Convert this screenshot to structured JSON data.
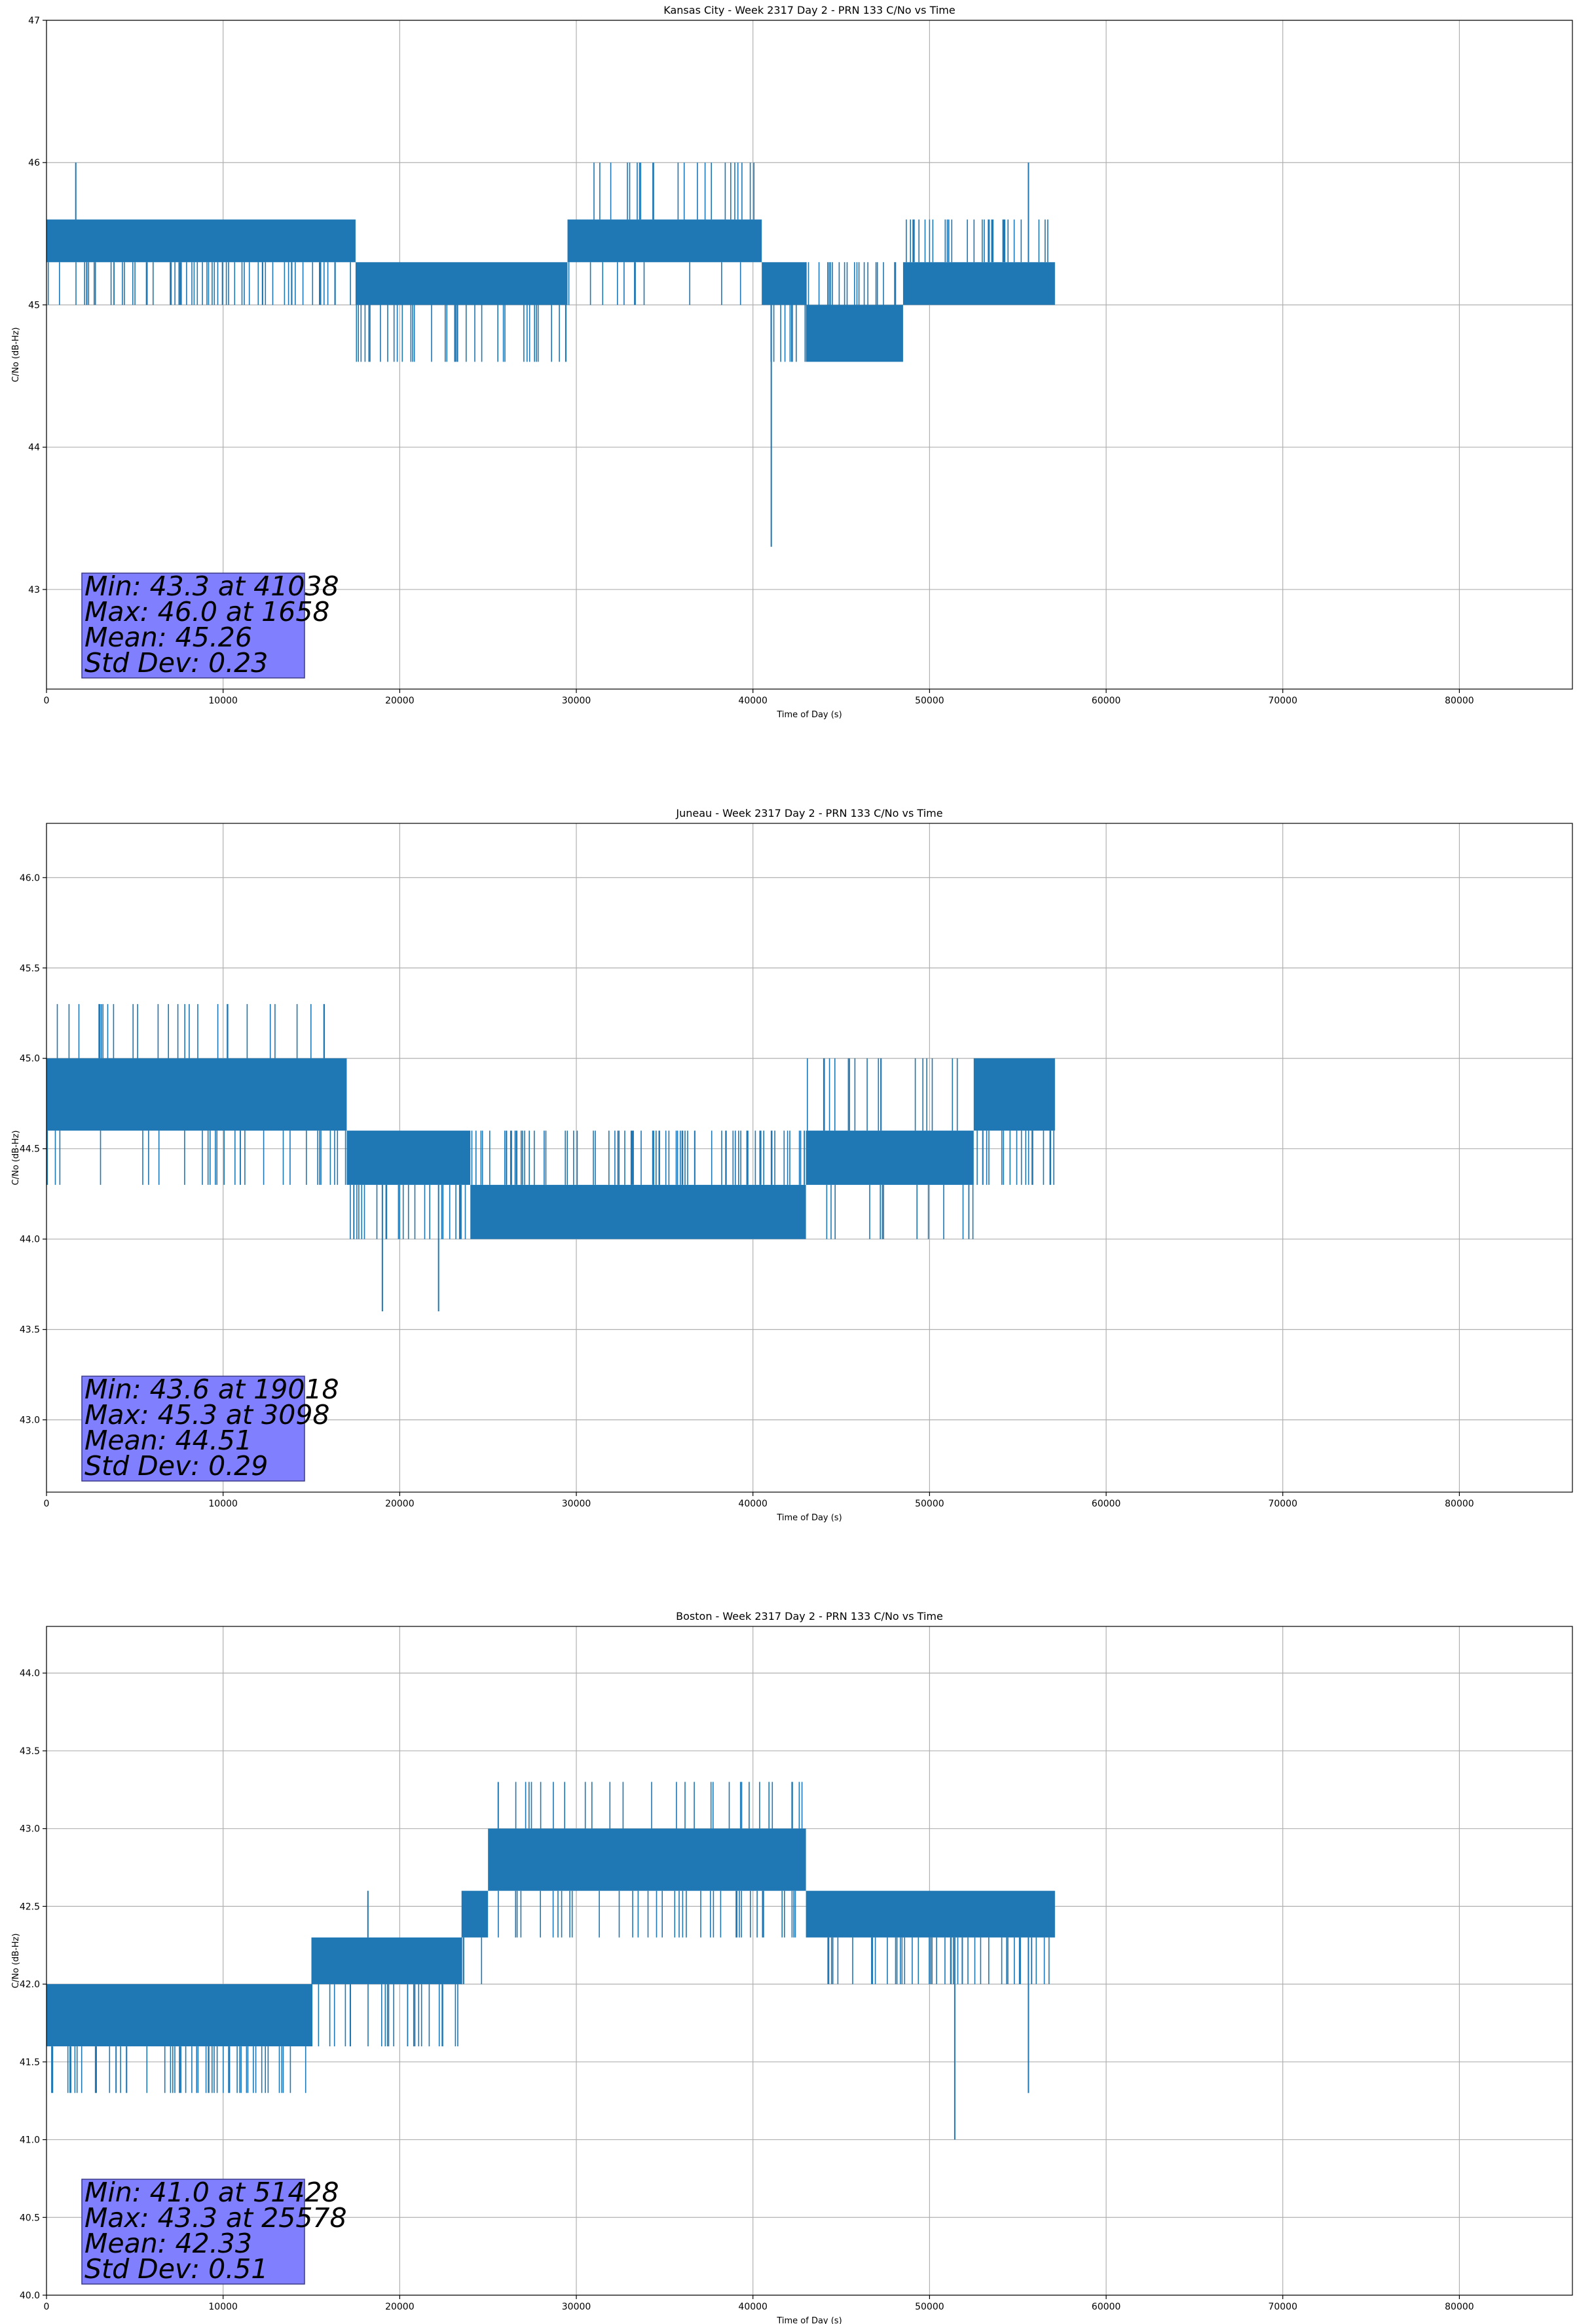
{
  "chart_data": [
    {
      "type": "line",
      "title": "Kansas City - Week 2317 Day 2 - PRN 133 C/No vs Time",
      "xlabel": "Time of Day (s)",
      "ylabel": "C/No (dB-Hz)",
      "xlim": [
        0,
        86400
      ],
      "ylim": [
        42.3,
        47.0
      ],
      "xticks": [
        0,
        10000,
        20000,
        30000,
        40000,
        50000,
        60000,
        70000,
        80000
      ],
      "yticks": [
        43,
        44,
        45,
        46,
        47
      ],
      "ytick_labels": [
        "43",
        "44",
        "45",
        "46",
        "47"
      ],
      "grid": true,
      "color": "#1f77b4",
      "levels": [
        45.0,
        45.3,
        45.6
      ],
      "segments": [
        {
          "x0": 0,
          "x1": 17500,
          "lo": 45.3,
          "hi": 45.6,
          "dips": [
            45.0
          ]
        },
        {
          "x0": 17500,
          "x1": 29500,
          "lo": 45.0,
          "hi": 45.3,
          "dips": [
            44.6
          ]
        },
        {
          "x0": 29500,
          "x1": 40500,
          "lo": 45.3,
          "hi": 45.6,
          "dips": [
            46.0,
            45.0
          ]
        },
        {
          "x0": 40500,
          "x1": 43000,
          "lo": 45.0,
          "hi": 45.3,
          "dips": [
            44.6
          ]
        },
        {
          "x0": 43000,
          "x1": 48500,
          "lo": 44.6,
          "hi": 45.0,
          "dips": [
            45.3
          ]
        },
        {
          "x0": 48500,
          "x1": 57100,
          "lo": 45.0,
          "hi": 45.3,
          "dips": [
            45.6
          ]
        }
      ],
      "spikes": [
        {
          "x": 1658,
          "y": 46.0
        },
        {
          "x": 41038,
          "y": 43.3
        },
        {
          "x": 55600,
          "y": 46.0
        }
      ],
      "stats": {
        "min": "Min: 43.3 at 41038",
        "max": "Max: 46.0 at 1658",
        "mean": "Mean: 45.26",
        "std": "Std Dev: 0.23"
      },
      "stat_box_color": "#8080ff"
    },
    {
      "type": "line",
      "title": "Juneau - Week 2317 Day 2 - PRN 133 C/No vs Time",
      "xlabel": "Time of Day (s)",
      "ylabel": "C/No (dB-Hz)",
      "xlim": [
        0,
        86400
      ],
      "ylim": [
        42.6,
        46.3
      ],
      "xticks": [
        0,
        10000,
        20000,
        30000,
        40000,
        50000,
        60000,
        70000,
        80000
      ],
      "yticks": [
        43.0,
        43.5,
        44.0,
        44.5,
        45.0,
        45.5,
        46.0
      ],
      "ytick_labels": [
        "43.0",
        "43.5",
        "44.0",
        "44.5",
        "45.0",
        "45.5",
        "46.0"
      ],
      "grid": true,
      "color": "#1f77b4",
      "segments": [
        {
          "x0": 0,
          "x1": 17000,
          "lo": 44.6,
          "hi": 45.0,
          "dips": [
            45.3,
            44.3
          ]
        },
        {
          "x0": 17000,
          "x1": 24000,
          "lo": 44.3,
          "hi": 44.6,
          "dips": [
            44.0
          ]
        },
        {
          "x0": 24000,
          "x1": 43000,
          "lo": 44.0,
          "hi": 44.3,
          "dips": [
            44.6
          ]
        },
        {
          "x0": 43000,
          "x1": 52500,
          "lo": 44.3,
          "hi": 44.6,
          "dips": [
            45.0,
            44.0
          ]
        },
        {
          "x0": 52500,
          "x1": 57100,
          "lo": 44.6,
          "hi": 45.0,
          "dips": [
            44.3
          ]
        }
      ],
      "spikes": [
        {
          "x": 3098,
          "y": 45.3
        },
        {
          "x": 19018,
          "y": 43.6
        },
        {
          "x": 22200,
          "y": 43.6
        }
      ],
      "stats": {
        "min": "Min: 43.6 at 19018",
        "max": "Max: 45.3 at 3098",
        "mean": "Mean: 44.51",
        "std": "Std Dev: 0.29"
      },
      "stat_box_color": "#8080ff"
    },
    {
      "type": "line",
      "title": "Boston - Week 2317 Day 2 - PRN 133 C/No vs Time",
      "xlabel": "Time of Day (s)",
      "ylabel": "C/No (dB-Hz)",
      "xlim": [
        0,
        86400
      ],
      "ylim": [
        40.0,
        44.3
      ],
      "xticks": [
        0,
        10000,
        20000,
        30000,
        40000,
        50000,
        60000,
        70000,
        80000
      ],
      "yticks": [
        40.0,
        40.5,
        41.0,
        41.5,
        42.0,
        42.5,
        43.0,
        43.5,
        44.0
      ],
      "ytick_labels": [
        "40.0",
        "40.5",
        "41.0",
        "41.5",
        "42.0",
        "42.5",
        "43.0",
        "43.5",
        "44.0"
      ],
      "grid": true,
      "color": "#1f77b4",
      "segments": [
        {
          "x0": 0,
          "x1": 15000,
          "lo": 41.6,
          "hi": 42.0,
          "dips": [
            41.3
          ]
        },
        {
          "x0": 15000,
          "x1": 23500,
          "lo": 42.0,
          "hi": 42.3,
          "dips": [
            41.6
          ]
        },
        {
          "x0": 23500,
          "x1": 25000,
          "lo": 42.3,
          "hi": 42.6,
          "dips": [
            42.0
          ]
        },
        {
          "x0": 25000,
          "x1": 43000,
          "lo": 42.6,
          "hi": 43.0,
          "dips": [
            43.3,
            42.3
          ]
        },
        {
          "x0": 43000,
          "x1": 57100,
          "lo": 42.3,
          "hi": 42.6,
          "dips": [
            42.0
          ]
        }
      ],
      "spikes": [
        {
          "x": 18200,
          "y": 42.6
        },
        {
          "x": 25578,
          "y": 43.3
        },
        {
          "x": 51428,
          "y": 41.0
        },
        {
          "x": 55600,
          "y": 41.3
        }
      ],
      "stats": {
        "min": "Min: 41.0 at 51428",
        "max": "Max: 43.3 at 25578",
        "mean": "Mean: 42.33",
        "std": "Std Dev: 0.51"
      },
      "stat_box_color": "#8080ff"
    }
  ]
}
